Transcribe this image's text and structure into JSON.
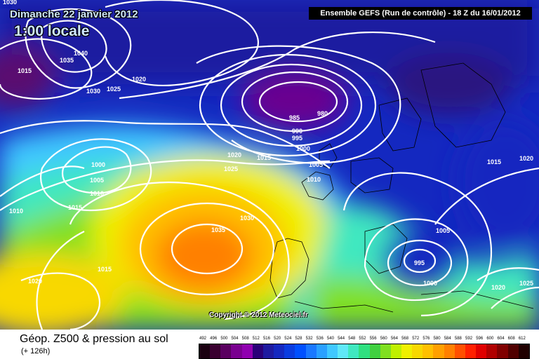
{
  "header": {
    "date": "Dimanche 22 janvier 2012",
    "time": "1:00 locale",
    "run_info": "Ensemble GEFS (Run de contrôle)  -  18 Z du 16/01/2012"
  },
  "copyright": "Copyright © 2012 Meteociel.fr",
  "footer": {
    "title": "Géop. Z500 & pression au sol",
    "subtitle": "(+ 126h)"
  },
  "legend": {
    "labels": [
      "492",
      "496",
      "500",
      "504",
      "508",
      "512",
      "516",
      "520",
      "524",
      "528",
      "532",
      "536",
      "540",
      "544",
      "548",
      "552",
      "556",
      "560",
      "564",
      "568",
      "572",
      "576",
      "580",
      "584",
      "588",
      "592",
      "596",
      "600",
      "604",
      "608",
      "612"
    ],
    "colors": [
      "#1a0010",
      "#3a0030",
      "#5a0060",
      "#7a0090",
      "#9000b0",
      "#2a0078",
      "#1e1aa0",
      "#1428c0",
      "#0a3ce0",
      "#0050ff",
      "#1a78ff",
      "#2aa0ff",
      "#40c8ff",
      "#60e8f8",
      "#40e8c0",
      "#30e080",
      "#40d040",
      "#80e020",
      "#c0f000",
      "#f0f000",
      "#f8d800",
      "#ffc000",
      "#ffa000",
      "#ff8000",
      "#ff5000",
      "#ff2000",
      "#e00000",
      "#b00000",
      "#800000",
      "#500000",
      "#200000"
    ]
  },
  "isobars": [
    "1030",
    "1040",
    "1035",
    "1015",
    "1030",
    "1025",
    "1020",
    "985",
    "980",
    "990",
    "995",
    "1000",
    "1000",
    "1005",
    "1010",
    "1015",
    "1010",
    "1020",
    "1025",
    "1015",
    "1005",
    "1010",
    "1035",
    "1030",
    "1015",
    "1020",
    "1005",
    "995",
    "1000",
    "1015",
    "1020",
    "1020",
    "1025"
  ]
}
